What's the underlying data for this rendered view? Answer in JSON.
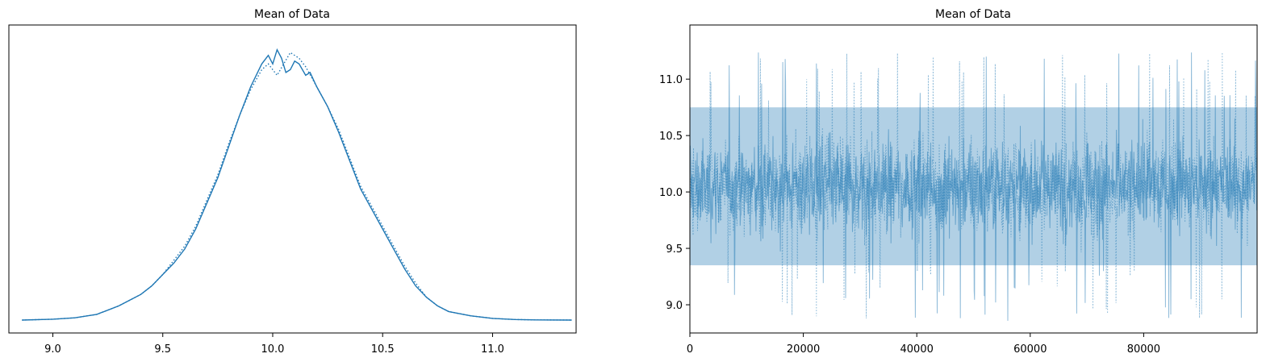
{
  "chart_data": [
    {
      "type": "line",
      "title": "Mean of Data",
      "xlabel": "",
      "ylabel": "",
      "xlim": [
        8.8,
        11.38
      ],
      "ylim": [
        0,
        1.0
      ],
      "show_yticks": false,
      "grid": false,
      "xticks": [
        9.0,
        9.5,
        10.0,
        10.5,
        11.0
      ],
      "xtick_labels": [
        "9.0",
        "9.5",
        "10.0",
        "10.5",
        "11.0"
      ],
      "color": "#1f77b4",
      "series": [
        {
          "style": "solid",
          "x": [
            8.86,
            9.0,
            9.1,
            9.2,
            9.3,
            9.35,
            9.4,
            9.45,
            9.5,
            9.55,
            9.6,
            9.65,
            9.7,
            9.75,
            9.8,
            9.85,
            9.9,
            9.95,
            9.98,
            10.0,
            10.02,
            10.04,
            10.06,
            10.08,
            10.1,
            10.12,
            10.15,
            10.17,
            10.2,
            10.25,
            10.3,
            10.35,
            10.4,
            10.45,
            10.5,
            10.55,
            10.6,
            10.65,
            10.7,
            10.75,
            10.8,
            10.9,
            11.0,
            11.1,
            11.2,
            11.36
          ],
          "y": [
            0.0,
            0.003,
            0.008,
            0.02,
            0.05,
            0.07,
            0.09,
            0.12,
            0.16,
            0.2,
            0.25,
            0.32,
            0.41,
            0.5,
            0.61,
            0.72,
            0.82,
            0.9,
            0.93,
            0.9,
            0.95,
            0.92,
            0.87,
            0.88,
            0.91,
            0.9,
            0.86,
            0.87,
            0.82,
            0.75,
            0.66,
            0.56,
            0.46,
            0.39,
            0.32,
            0.25,
            0.18,
            0.12,
            0.08,
            0.05,
            0.03,
            0.015,
            0.006,
            0.002,
            0.0005,
            0.0
          ]
        },
        {
          "style": "dotted",
          "x": [
            8.86,
            9.0,
            9.1,
            9.2,
            9.3,
            9.35,
            9.4,
            9.45,
            9.5,
            9.55,
            9.6,
            9.65,
            9.7,
            9.75,
            9.8,
            9.85,
            9.9,
            9.95,
            9.98,
            10.0,
            10.02,
            10.05,
            10.08,
            10.1,
            10.12,
            10.15,
            10.2,
            10.25,
            10.3,
            10.35,
            10.4,
            10.45,
            10.5,
            10.55,
            10.6,
            10.65,
            10.7,
            10.75,
            10.8,
            10.9,
            11.0,
            11.1,
            11.2,
            11.36
          ],
          "y": [
            0.0,
            0.003,
            0.008,
            0.02,
            0.05,
            0.07,
            0.09,
            0.12,
            0.16,
            0.21,
            0.26,
            0.33,
            0.42,
            0.51,
            0.62,
            0.72,
            0.81,
            0.88,
            0.9,
            0.88,
            0.86,
            0.9,
            0.94,
            0.93,
            0.92,
            0.89,
            0.82,
            0.75,
            0.67,
            0.57,
            0.47,
            0.4,
            0.33,
            0.26,
            0.19,
            0.13,
            0.08,
            0.05,
            0.03,
            0.015,
            0.006,
            0.002,
            0.0005,
            0.0
          ]
        }
      ]
    },
    {
      "type": "line",
      "title": "Mean of Data",
      "xlabel": "",
      "ylabel": "",
      "xlim": [
        0,
        99999
      ],
      "ylim": [
        8.75,
        11.48
      ],
      "grid": false,
      "xticks": [
        0,
        20000,
        40000,
        60000,
        80000
      ],
      "xtick_labels": [
        "0",
        "20000",
        "40000",
        "60000",
        "80000"
      ],
      "yticks": [
        9.0,
        9.5,
        10.0,
        10.5,
        11.0
      ],
      "ytick_labels": [
        "9.0",
        "9.5",
        "10.0",
        "10.5",
        "11.0"
      ],
      "color": "#1f77b4",
      "alpha": 0.5,
      "series_style": [
        "solid",
        "dotted"
      ],
      "center": 10.05,
      "band_low": 9.35,
      "band_high": 10.75,
      "series_min": 8.85,
      "series_max": 11.35,
      "n_draws": 100000
    }
  ]
}
